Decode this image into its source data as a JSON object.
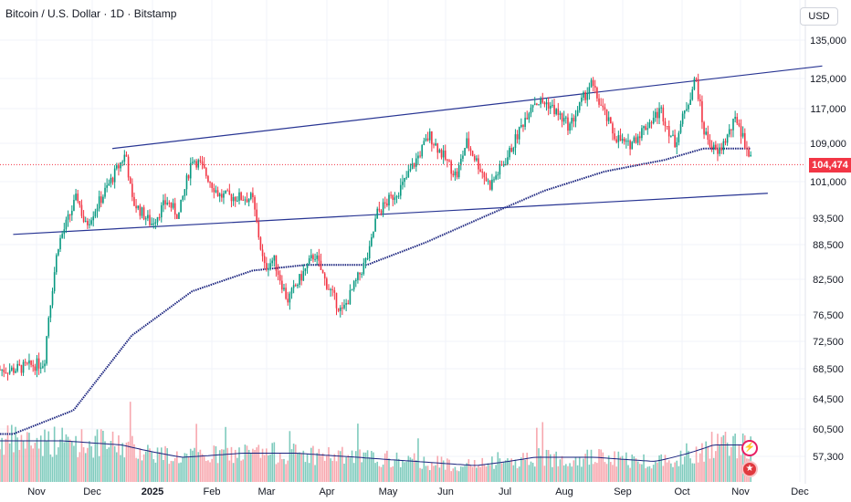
{
  "header": {
    "title": "Bitcoin / U.S. Dollar · 1D · Bitstamp",
    "currency_button": "USD"
  },
  "last_price_label": "104,474",
  "colors": {
    "up": "#089981",
    "down": "#f23645",
    "volume_up": "#7fcbbd",
    "volume_down": "#f7a7ae",
    "ma_line": "#1a237e",
    "trendline": "#283593",
    "price_line": "#f23645"
  },
  "icons": [
    "lightning-icon",
    "us-flag-icon"
  ],
  "chart_data": {
    "type": "candlestick",
    "title": "Bitcoin / U.S. Dollar · 1D · Bitstamp",
    "x_tick_labels": [
      "Nov",
      "Dec",
      "2025",
      "Feb",
      "Mar",
      "Apr",
      "May",
      "Jun",
      "Jul",
      "Aug",
      "Sep",
      "Oct",
      "Nov",
      "Dec"
    ],
    "y_tick_labels": [
      "135,000",
      "125,000",
      "117,000",
      "109,000",
      "101,000",
      "93,500",
      "88,500",
      "82,500",
      "76,500",
      "72,500",
      "68,500",
      "64,500",
      "60,500",
      "57,300"
    ],
    "y_scale": "log",
    "last_price": 104474,
    "close_series": [
      [
        "2024-10-20",
        68500
      ],
      [
        "2024-11-05",
        69500
      ],
      [
        "2024-11-07",
        76000
      ],
      [
        "2024-11-12",
        88500
      ],
      [
        "2024-11-22",
        98000
      ],
      [
        "2024-11-26",
        92000
      ],
      [
        "2024-12-05",
        98000
      ],
      [
        "2024-12-17",
        107000
      ],
      [
        "2024-12-20",
        97000
      ],
      [
        "2024-12-30",
        92500
      ],
      [
        "2025-01-07",
        97000
      ],
      [
        "2025-01-13",
        94000
      ],
      [
        "2025-01-20",
        106000
      ],
      [
        "2025-01-24",
        104500
      ],
      [
        "2025-02-03",
        98000
      ],
      [
        "2025-02-20",
        97500
      ],
      [
        "2025-02-26",
        84500
      ],
      [
        "2025-03-03",
        86000
      ],
      [
        "2025-03-10",
        79000
      ],
      [
        "2025-03-24",
        87000
      ],
      [
        "2025-03-29",
        82500
      ],
      [
        "2025-04-07",
        77000
      ],
      [
        "2025-04-21",
        87000
      ],
      [
        "2025-04-25",
        94500
      ],
      [
        "2025-05-08",
        100000
      ],
      [
        "2025-05-22",
        111000
      ],
      [
        "2025-06-05",
        102000
      ],
      [
        "2025-06-10",
        109500
      ],
      [
        "2025-06-22",
        100000
      ],
      [
        "2025-07-01",
        106000
      ],
      [
        "2025-07-14",
        119000
      ],
      [
        "2025-07-22",
        118500
      ],
      [
        "2025-08-02",
        113000
      ],
      [
        "2025-08-13",
        123500
      ],
      [
        "2025-08-25",
        111000
      ],
      [
        "2025-09-01",
        108500
      ],
      [
        "2025-09-18",
        117000
      ],
      [
        "2025-09-25",
        109000
      ],
      [
        "2025-10-06",
        125000
      ],
      [
        "2025-10-10",
        112000
      ],
      [
        "2025-10-17",
        106500
      ],
      [
        "2025-10-27",
        115000
      ],
      [
        "2025-11-04",
        104474
      ]
    ],
    "moving_average_series": [
      [
        "2024-10-20",
        60000
      ],
      [
        "2024-11-20",
        63000
      ],
      [
        "2024-12-20",
        73500
      ],
      [
        "2025-01-20",
        80500
      ],
      [
        "2025-02-20",
        84000
      ],
      [
        "2025-03-20",
        85000
      ],
      [
        "2025-04-20",
        85000
      ],
      [
        "2025-05-20",
        89000
      ],
      [
        "2025-06-20",
        94000
      ],
      [
        "2025-07-20",
        99000
      ],
      [
        "2025-08-20",
        103000
      ],
      [
        "2025-09-20",
        105500
      ],
      [
        "2025-10-10",
        108000
      ],
      [
        "2025-11-04",
        108000
      ]
    ],
    "volume_profile": [
      [
        "2024-11",
        0.5
      ],
      [
        "2024-12",
        0.45
      ],
      [
        "2025-01",
        0.3
      ],
      [
        "2025-02",
        0.35
      ],
      [
        "2025-03",
        0.35
      ],
      [
        "2025-04",
        0.3
      ],
      [
        "2025-05",
        0.25
      ],
      [
        "2025-06",
        0.2
      ],
      [
        "2025-07",
        0.3
      ],
      [
        "2025-08",
        0.3
      ],
      [
        "2025-09",
        0.25
      ],
      [
        "2025-10",
        0.45
      ]
    ],
    "trendlines": [
      {
        "start": [
          "2024-12-10",
          108000
        ],
        "end": [
          "2025-12-10",
          128000
        ]
      },
      {
        "start": [
          "2024-10-20",
          90500
        ],
        "end": [
          "2025-11-12",
          98500
        ]
      }
    ],
    "grid": true
  }
}
